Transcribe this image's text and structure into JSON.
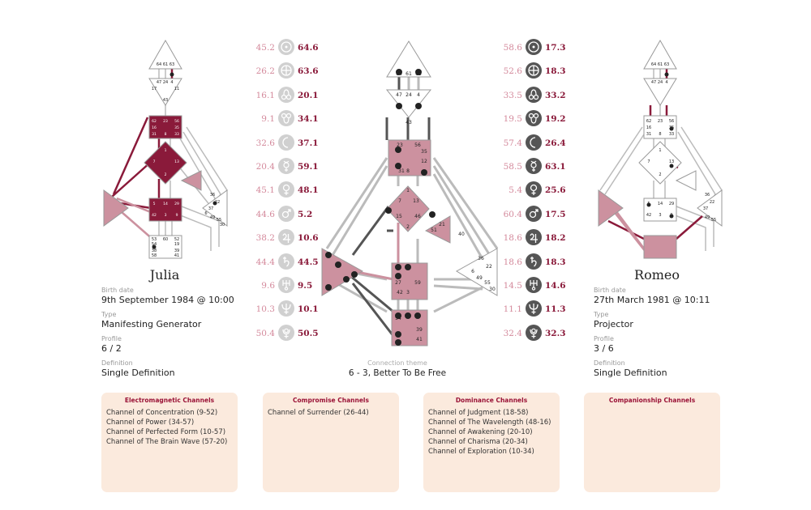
{
  "person_left": {
    "name": "Julia",
    "birth_label": "Birth date",
    "birth_value": "9th September 1984 @ 10:00",
    "type_label": "Type",
    "type_value": "Manifesting Generator",
    "profile_label": "Profile",
    "profile_value": "6 / 2",
    "definition_label": "Definition",
    "definition_value": "Single Definition"
  },
  "person_right": {
    "name": "Romeo",
    "birth_label": "Birth date",
    "birth_value": "27th March 1981 @ 10:11",
    "type_label": "Type",
    "type_value": "Projector",
    "profile_label": "Profile",
    "profile_value": "3 / 6",
    "definition_label": "Definition",
    "definition_value": "Single Definition"
  },
  "connection": {
    "label": "Connection theme",
    "value": "6 - 3, Better To Be Free"
  },
  "planets_left": [
    {
      "icon": "sun-icon",
      "design": "45.2",
      "personality": "64.6"
    },
    {
      "icon": "earth-icon",
      "design": "26.2",
      "personality": "63.6"
    },
    {
      "icon": "north-node-icon",
      "design": "16.1",
      "personality": "20.1"
    },
    {
      "icon": "south-node-icon",
      "design": "9.1",
      "personality": "34.1"
    },
    {
      "icon": "moon-icon",
      "design": "32.6",
      "personality": "37.1"
    },
    {
      "icon": "mercury-icon",
      "design": "20.4",
      "personality": "59.1"
    },
    {
      "icon": "venus-icon",
      "design": "45.1",
      "personality": "48.1"
    },
    {
      "icon": "mars-icon",
      "design": "44.6",
      "personality": "5.2"
    },
    {
      "icon": "jupiter-icon",
      "design": "38.2",
      "personality": "10.6"
    },
    {
      "icon": "saturn-icon",
      "design": "44.4",
      "personality": "44.5"
    },
    {
      "icon": "uranus-icon",
      "design": "9.6",
      "personality": "9.5"
    },
    {
      "icon": "neptune-icon",
      "design": "10.3",
      "personality": "10.1"
    },
    {
      "icon": "pluto-icon",
      "design": "50.4",
      "personality": "50.5"
    }
  ],
  "planets_right": [
    {
      "icon": "sun-icon",
      "design": "58.6",
      "personality": "17.3"
    },
    {
      "icon": "earth-icon",
      "design": "52.6",
      "personality": "18.3"
    },
    {
      "icon": "north-node-icon",
      "design": "33.5",
      "personality": "33.2"
    },
    {
      "icon": "south-node-icon",
      "design": "19.5",
      "personality": "19.2"
    },
    {
      "icon": "moon-icon",
      "design": "57.4",
      "personality": "26.4"
    },
    {
      "icon": "mercury-icon",
      "design": "58.5",
      "personality": "63.1"
    },
    {
      "icon": "venus-icon",
      "design": "5.4",
      "personality": "25.6"
    },
    {
      "icon": "mars-icon",
      "design": "60.4",
      "personality": "17.5"
    },
    {
      "icon": "jupiter-icon",
      "design": "18.6",
      "personality": "18.2"
    },
    {
      "icon": "saturn-icon",
      "design": "18.6",
      "personality": "18.3"
    },
    {
      "icon": "uranus-icon",
      "design": "14.5",
      "personality": "14.6"
    },
    {
      "icon": "neptune-icon",
      "design": "11.1",
      "personality": "11.3"
    },
    {
      "icon": "pluto-icon",
      "design": "32.4",
      "personality": "32.3"
    }
  ],
  "channel_boxes": [
    {
      "title": "Electromagnetic Channels",
      "items": [
        "Channel of Concentration (9-52)",
        "Channel of Power (34-57)",
        "Channel of Perfected Form (10-57)",
        "Channel of The Brain Wave (57-20)"
      ]
    },
    {
      "title": "Compromise Channels",
      "items": [
        "Channel of Surrender (26-44)"
      ]
    },
    {
      "title": "Dominance Channels",
      "items": [
        "Channel of Judgment (18-58)",
        "Channel of The Wavelength (48-16)",
        "Channel of Awakening (20-10)",
        "Channel of Charisma (20-34)",
        "Channel of Exploration (10-34)"
      ]
    },
    {
      "title": "Companionship Channels",
      "items": []
    }
  ],
  "gate_labels": {
    "head": [
      "64",
      "61",
      "63"
    ],
    "ajna": [
      "47",
      "24",
      "4",
      "17",
      "11",
      "43"
    ],
    "throat": [
      "62",
      "23",
      "56",
      "16",
      "35",
      "20",
      "12",
      "31",
      "8",
      "33",
      "45"
    ],
    "g_center": [
      "1",
      "7",
      "13",
      "10",
      "15",
      "46",
      "2",
      "25"
    ],
    "heart": [
      "21",
      "51",
      "26",
      "40"
    ],
    "sacral": [
      "5",
      "14",
      "29",
      "34",
      "27",
      "42",
      "3",
      "9",
      "59"
    ],
    "spleen": [
      "48",
      "57",
      "44",
      "50",
      "32",
      "28",
      "18"
    ],
    "solar_plexus": [
      "36",
      "22",
      "37",
      "6",
      "49",
      "55",
      "30"
    ],
    "root": [
      "53",
      "60",
      "52",
      "54",
      "19",
      "38",
      "39",
      "58",
      "41"
    ]
  },
  "colors": {
    "defined": "#cc919f",
    "defined_dark": "#8a1a3a",
    "design": "#d48a9c",
    "personality": "#8a1a3a",
    "box_bg": "#fbeadd"
  }
}
